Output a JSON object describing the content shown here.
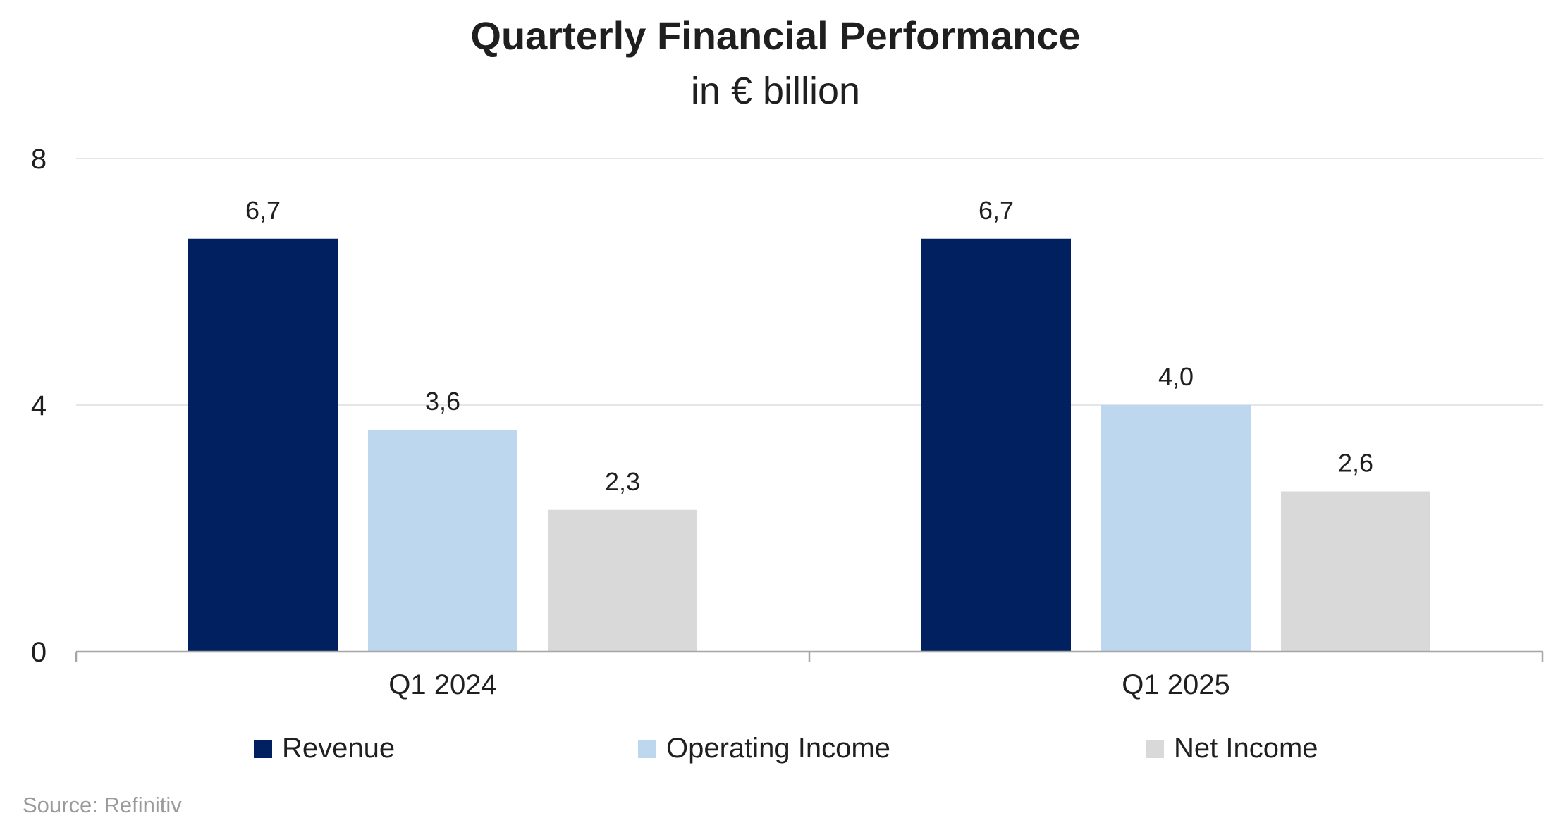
{
  "chart_data": {
    "type": "bar",
    "title": "Quarterly Financial Performance",
    "subtitle": "in € billion",
    "categories": [
      "Q1 2024",
      "Q1 2025"
    ],
    "series": [
      {
        "name": "Revenue",
        "values": [
          6.7,
          6.7
        ],
        "labels": [
          "6,7",
          "6,7"
        ],
        "color": "#002060"
      },
      {
        "name": "Operating Income",
        "values": [
          3.6,
          4.0
        ],
        "labels": [
          "3,6",
          "4,0"
        ],
        "color": "#bdd7ee"
      },
      {
        "name": "Net Income",
        "values": [
          2.3,
          2.6
        ],
        "labels": [
          "2,3",
          "2,6"
        ],
        "color": "#d9d9d9"
      }
    ],
    "yticks": [
      0,
      4,
      8
    ],
    "ytick_labels": [
      "0",
      "4",
      "8"
    ],
    "ylim": [
      0,
      8
    ],
    "xlabel": "",
    "ylabel": "",
    "grid": true,
    "legend_position": "bottom"
  },
  "source": "Source: Refinitiv",
  "colors": {
    "axis": "#a6a6a6",
    "grid": "#e6e6e6",
    "text": "#1f1f1f",
    "source": "#9a9a9a"
  }
}
